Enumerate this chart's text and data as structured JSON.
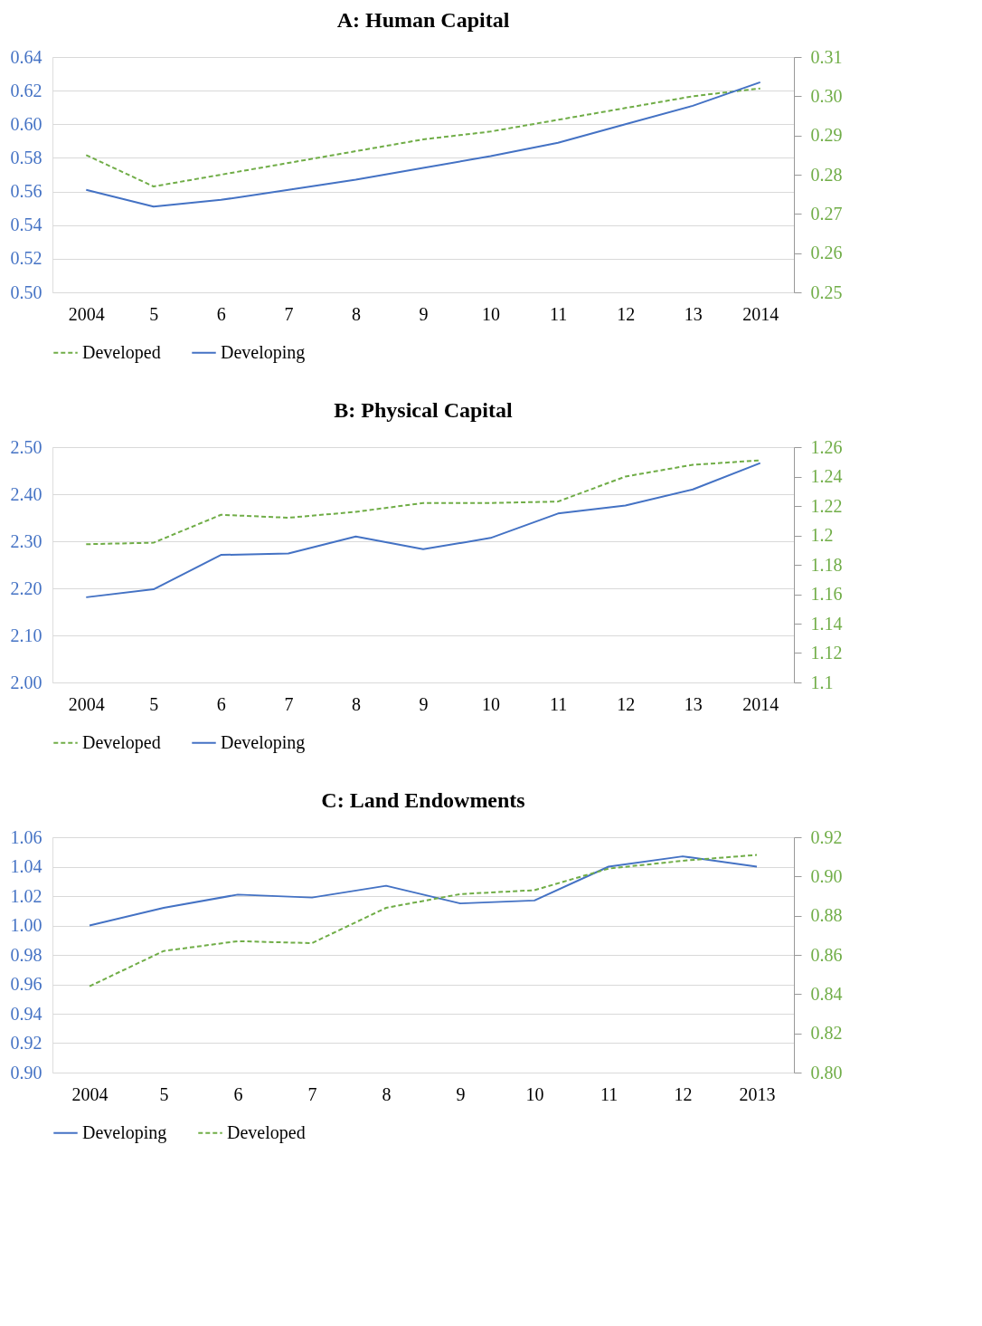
{
  "chart_data": [
    {
      "type": "line",
      "title": "A: Human Capital",
      "categories": [
        "2004",
        "5",
        "6",
        "7",
        "8",
        "9",
        "10",
        "11",
        "12",
        "13",
        "2014"
      ],
      "series": [
        {
          "name": "Developed",
          "color": "#70ad47",
          "axis": "y2",
          "line_style": "dashed",
          "values": [
            0.285,
            0.277,
            0.28,
            0.283,
            0.286,
            0.289,
            0.291,
            0.294,
            0.297,
            0.3,
            0.302
          ]
        },
        {
          "name": "Developing",
          "color": "#4472c4",
          "line_style": "solid",
          "values": [
            0.561,
            0.551,
            0.555,
            0.561,
            0.567,
            0.574,
            0.581,
            0.589,
            0.6,
            0.611,
            0.625
          ]
        }
      ],
      "ylim": [
        0.5,
        0.64
      ],
      "yticks": [
        {
          "value": 0.5,
          "label": "0.50"
        },
        0.52,
        0.54,
        0.56,
        0.58,
        {
          "value": 0.6,
          "label": "0.60"
        },
        0.62,
        0.64
      ],
      "y2lim": [
        0.25,
        0.31
      ],
      "y2ticks": [
        0.25,
        0.26,
        0.27,
        0.28,
        0.29,
        {
          "value": 0.3,
          "label": "0.30"
        },
        0.31
      ],
      "grid": "y",
      "legend": "bottom"
    },
    {
      "type": "line",
      "title": "B: Physical Capital",
      "categories": [
        "2004",
        "5",
        "6",
        "7",
        "8",
        "9",
        "10",
        "11",
        "12",
        "13",
        "2014"
      ],
      "series": [
        {
          "name": "Developed",
          "color": "#70ad47",
          "axis": "y2",
          "line_style": "dashed",
          "values": [
            1.194,
            1.195,
            1.214,
            1.212,
            1.216,
            1.222,
            1.222,
            1.223,
            1.24,
            1.248,
            1.251
          ]
        },
        {
          "name": "Developing",
          "color": "#4472c4",
          "line_style": "solid",
          "values": [
            2.181,
            2.198,
            2.271,
            2.274,
            2.31,
            2.283,
            2.307,
            2.359,
            2.376,
            2.41,
            2.466
          ]
        }
      ],
      "ylim": [
        2.0,
        2.5
      ],
      "yticks": [
        {
          "value": 2.0,
          "label": "2.00"
        },
        {
          "value": 2.1,
          "label": "2.10"
        },
        {
          "value": 2.2,
          "label": "2.20"
        },
        {
          "value": 2.3,
          "label": "2.30"
        },
        {
          "value": 2.4,
          "label": "2.40"
        },
        {
          "value": 2.5,
          "label": "2.50"
        }
      ],
      "y2lim": [
        1.1,
        1.26
      ],
      "y2ticks": [
        1.1,
        1.12,
        1.14,
        1.16,
        1.18,
        1.2,
        1.22,
        1.24,
        1.26
      ],
      "grid": "y",
      "legend": "bottom"
    },
    {
      "type": "line",
      "title": "C: Land Endowments",
      "categories": [
        "2004",
        "5",
        "6",
        "7",
        "8",
        "9",
        "10",
        "11",
        "12",
        "2013"
      ],
      "series": [
        {
          "name": "Developing",
          "color": "#4472c4",
          "line_style": "solid",
          "values": [
            1.0,
            1.012,
            1.021,
            1.019,
            1.027,
            1.015,
            1.017,
            1.04,
            1.047,
            1.04
          ]
        },
        {
          "name": "Developed",
          "color": "#70ad47",
          "axis": "y2",
          "line_style": "dashed",
          "values": [
            0.844,
            0.862,
            0.867,
            0.866,
            0.884,
            0.891,
            0.893,
            0.904,
            0.908,
            0.911
          ]
        }
      ],
      "ylim": [
        0.9,
        1.06
      ],
      "yticks": [
        {
          "value": 0.9,
          "label": "0.90"
        },
        0.92,
        0.94,
        0.96,
        0.98,
        {
          "value": 1.0,
          "label": "1.00"
        },
        1.02,
        1.04,
        1.06
      ],
      "y2lim": [
        0.8,
        0.92
      ],
      "y2ticks": [
        {
          "value": 0.8,
          "label": "0.80"
        },
        0.82,
        0.84,
        0.86,
        0.88,
        {
          "value": 0.9,
          "label": "0.90"
        },
        0.92
      ],
      "grid": "y",
      "legend": "bottom"
    }
  ]
}
